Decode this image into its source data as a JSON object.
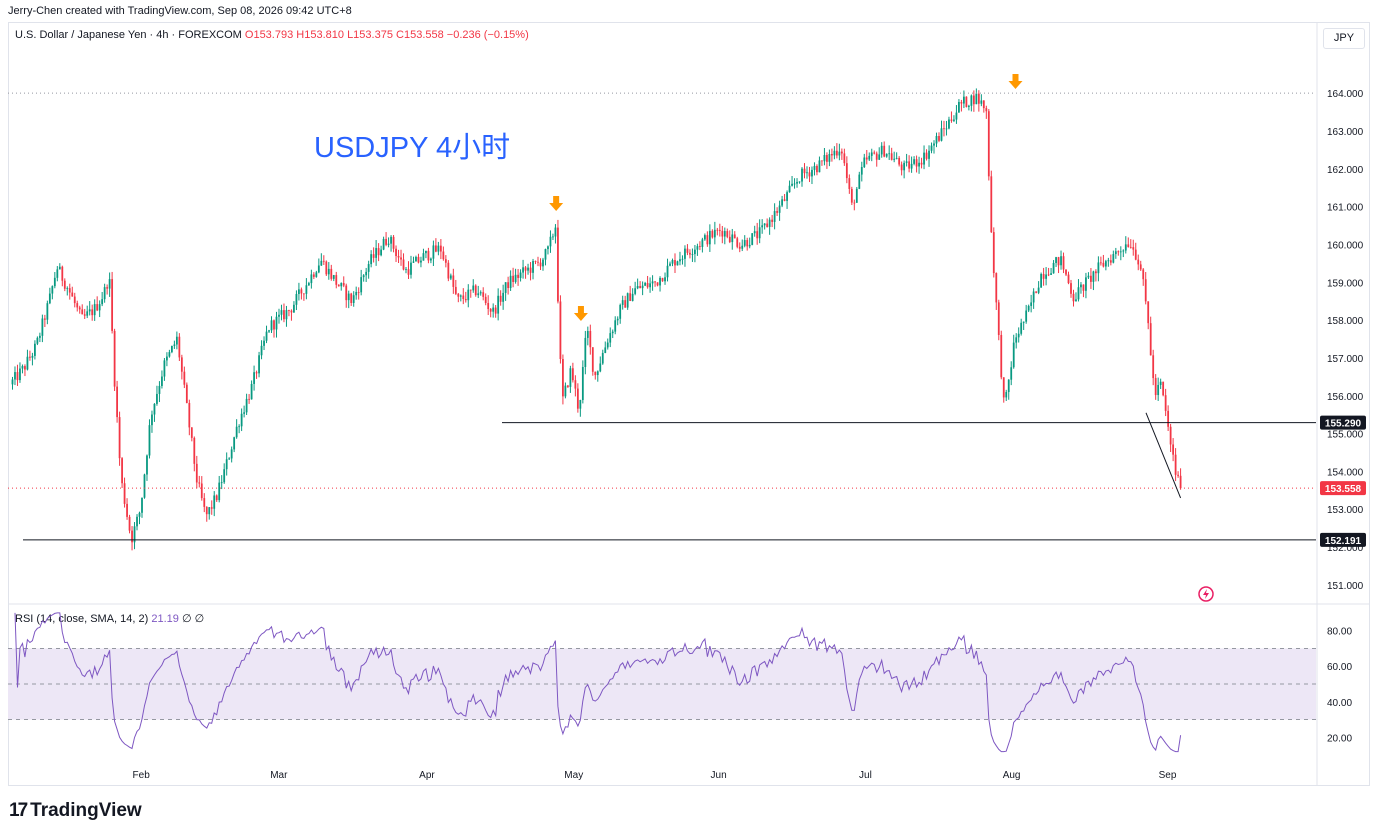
{
  "credit": "Jerry-Chen created with TradingView.com, Sep 08, 2026 09:42 UTC+8",
  "legend": {
    "symbol": "U.S. Dollar / Japanese Yen · 4h · FOREXCOM",
    "open": "O153.793",
    "high": "H153.810",
    "low": "L153.375",
    "close": "C153.558",
    "change": "−0.236 (−0.15%)"
  },
  "currency_button": "JPY",
  "annotation": "USDJPY 4小时",
  "rsi_legend": {
    "label": "RSI (14, close, SMA, 14, 2)",
    "value": "21.19",
    "extra": "∅ ∅"
  },
  "brand": "TradingView",
  "colors": {
    "up": "#089981",
    "down": "#f23645",
    "rsi": "#7e57c2",
    "rsi_band": "#ede7f6",
    "arrow": "#ff9800",
    "annotation": "#2962ff"
  },
  "chart_data": [
    {
      "type": "candlestick",
      "ylim": [
        150.6,
        165.3
      ],
      "price_ticks": [
        "151.000",
        "152.000",
        "153.000",
        "154.000",
        "155.000",
        "156.000",
        "157.000",
        "158.000",
        "159.000",
        "160.000",
        "161.000",
        "162.000",
        "163.000",
        "164.000"
      ],
      "x_ticks": [
        "Feb",
        "Mar",
        "Apr",
        "May",
        "Jun",
        "Jul",
        "Aug",
        "Sep"
      ],
      "last_price": "153.558",
      "horizontal_levels": [
        {
          "label": "155.290",
          "value": 155.29
        },
        {
          "label": "152.191",
          "value": 152.191
        }
      ],
      "high_marker_value": 164.0,
      "price_path": [
        [
          0,
          156.3
        ],
        [
          0.01,
          156.7
        ],
        [
          0.02,
          157.3
        ],
        [
          0.03,
          158.5
        ],
        [
          0.036,
          159.4
        ],
        [
          0.045,
          158.8
        ],
        [
          0.055,
          158.0
        ],
        [
          0.065,
          158.3
        ],
        [
          0.072,
          158.7
        ],
        [
          0.076,
          159.2
        ],
        [
          0.08,
          156.5
        ],
        [
          0.085,
          153.8
        ],
        [
          0.093,
          152.2
        ],
        [
          0.1,
          153.0
        ],
        [
          0.108,
          155.5
        ],
        [
          0.118,
          156.8
        ],
        [
          0.128,
          157.5
        ],
        [
          0.135,
          155.8
        ],
        [
          0.143,
          153.8
        ],
        [
          0.15,
          152.8
        ],
        [
          0.158,
          153.3
        ],
        [
          0.166,
          154.2
        ],
        [
          0.175,
          155.3
        ],
        [
          0.185,
          156.2
        ],
        [
          0.198,
          157.8
        ],
        [
          0.215,
          158.3
        ],
        [
          0.228,
          159.0
        ],
        [
          0.238,
          159.6
        ],
        [
          0.25,
          159.0
        ],
        [
          0.262,
          158.5
        ],
        [
          0.275,
          159.5
        ],
        [
          0.29,
          160.2
        ],
        [
          0.303,
          159.3
        ],
        [
          0.318,
          159.7
        ],
        [
          0.33,
          159.9
        ],
        [
          0.343,
          158.5
        ],
        [
          0.358,
          158.8
        ],
        [
          0.37,
          158.2
        ],
        [
          0.382,
          159.0
        ],
        [
          0.395,
          159.3
        ],
        [
          0.405,
          159.5
        ],
        [
          0.412,
          159.8
        ],
        [
          0.418,
          160.5
        ],
        [
          0.421,
          157.5
        ],
        [
          0.423,
          155.8
        ],
        [
          0.43,
          156.7
        ],
        [
          0.436,
          155.6
        ],
        [
          0.442,
          157.8
        ],
        [
          0.448,
          156.5
        ],
        [
          0.458,
          157.5
        ],
        [
          0.468,
          158.3
        ],
        [
          0.478,
          158.8
        ],
        [
          0.495,
          159.0
        ],
        [
          0.51,
          159.6
        ],
        [
          0.527,
          160.0
        ],
        [
          0.545,
          160.4
        ],
        [
          0.56,
          160.0
        ],
        [
          0.575,
          160.3
        ],
        [
          0.59,
          161.0
        ],
        [
          0.605,
          161.8
        ],
        [
          0.62,
          162.1
        ],
        [
          0.637,
          162.6
        ],
        [
          0.645,
          161.0
        ],
        [
          0.655,
          162.2
        ],
        [
          0.67,
          162.5
        ],
        [
          0.685,
          162.0
        ],
        [
          0.7,
          162.3
        ],
        [
          0.715,
          163.0
        ],
        [
          0.728,
          163.7
        ],
        [
          0.74,
          163.9
        ],
        [
          0.748,
          163.6
        ],
        [
          0.752,
          160.3
        ],
        [
          0.757,
          157.8
        ],
        [
          0.762,
          155.6
        ],
        [
          0.77,
          157.5
        ],
        [
          0.78,
          158.2
        ],
        [
          0.79,
          159.2
        ],
        [
          0.805,
          159.6
        ],
        [
          0.815,
          158.6
        ],
        [
          0.825,
          159.0
        ],
        [
          0.835,
          159.4
        ],
        [
          0.845,
          159.7
        ],
        [
          0.858,
          160.1
        ],
        [
          0.866,
          159.5
        ],
        [
          0.872,
          158.0
        ],
        [
          0.877,
          156.0
        ],
        [
          0.882,
          156.3
        ],
        [
          0.888,
          155.0
        ],
        [
          0.893,
          154.0
        ],
        [
          0.897,
          153.56
        ]
      ]
    },
    {
      "type": "line",
      "name": "RSI",
      "ylim": [
        5,
        95
      ],
      "y_ticks": [
        "20.00",
        "40.00",
        "60.00",
        "80.00"
      ],
      "band": [
        30,
        70
      ],
      "midline": 50,
      "last": 21.19
    }
  ]
}
